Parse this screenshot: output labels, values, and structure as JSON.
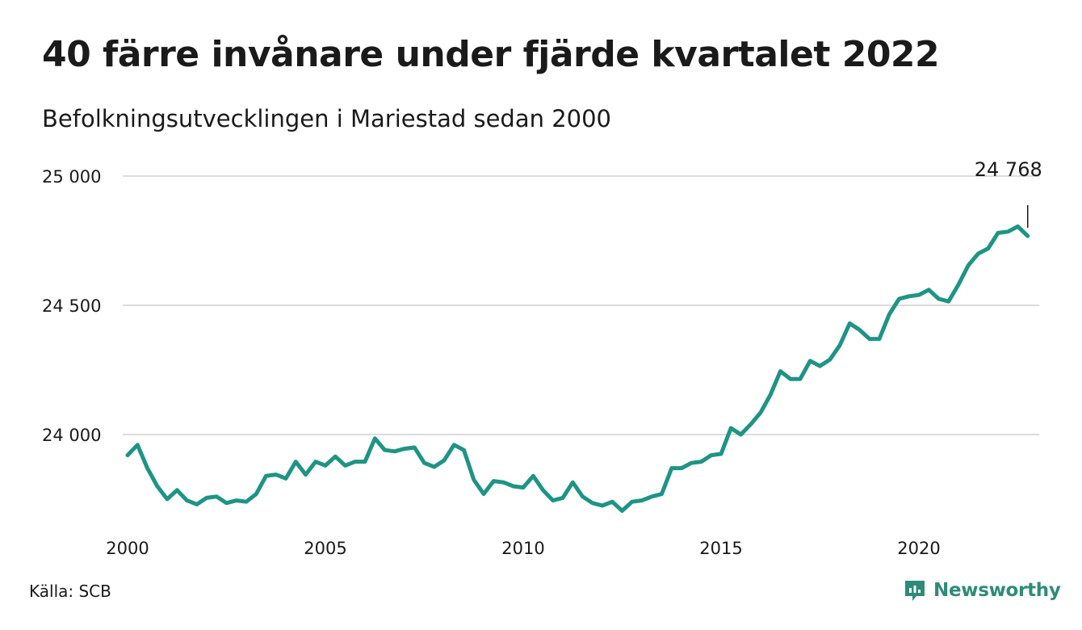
{
  "header": {
    "title": "40 färre invånare under fjärde kvartalet 2022",
    "subtitle": "Befolkningsutvecklingen i Mariestad sedan 2000"
  },
  "footer": {
    "source": "Källa: SCB",
    "brand": "Newsworthy"
  },
  "colors": {
    "line": "#1e9485",
    "grid": "#dcdcdc",
    "brand": "#2e8b78"
  },
  "chart_data": {
    "type": "line",
    "title": "40 färre invånare under fjärde kvartalet 2022",
    "subtitle": "Befolkningsutvecklingen i Mariestad sedan 2000",
    "xlabel": "",
    "ylabel": "",
    "x_start": 2000.0,
    "x_step": 0.25,
    "xlim": [
      2000,
      2023
    ],
    "ylim": [
      23650,
      25000
    ],
    "x_ticks": [
      2000,
      2005,
      2010,
      2015,
      2020
    ],
    "x_tick_labels": [
      "2000",
      "2005",
      "2010",
      "2015",
      "2020"
    ],
    "y_ticks": [
      24000,
      24500,
      25000
    ],
    "y_tick_labels": [
      "24 000",
      "24 500",
      "25 000"
    ],
    "grid": "horizontal",
    "annotation": {
      "label": "24 768",
      "value": 24768
    },
    "series": [
      {
        "values": [
          23920,
          23960,
          23870,
          23800,
          23750,
          23785,
          23745,
          23730,
          23755,
          23760,
          23735,
          23745,
          23740,
          23770,
          23840,
          23845,
          23830,
          23895,
          23845,
          23895,
          23880,
          23915,
          23880,
          23895,
          23895,
          23985,
          23940,
          23935,
          23945,
          23950,
          23890,
          23875,
          23900,
          23960,
          23940,
          23825,
          23770,
          23820,
          23815,
          23800,
          23795,
          23840,
          23785,
          23745,
          23755,
          23815,
          23760,
          23735,
          23725,
          23740,
          23705,
          23740,
          23745,
          23760,
          23770,
          23870,
          23870,
          23890,
          23895,
          23920,
          23925,
          24025,
          24000,
          24040,
          24085,
          24155,
          24245,
          24215,
          24215,
          24285,
          24265,
          24290,
          24345,
          24430,
          24405,
          24370,
          24370,
          24465,
          24525,
          24535,
          24540,
          24560,
          24525,
          24515,
          24580,
          24655,
          24700,
          24720,
          24780,
          24785,
          24805,
          24768
        ]
      }
    ]
  }
}
